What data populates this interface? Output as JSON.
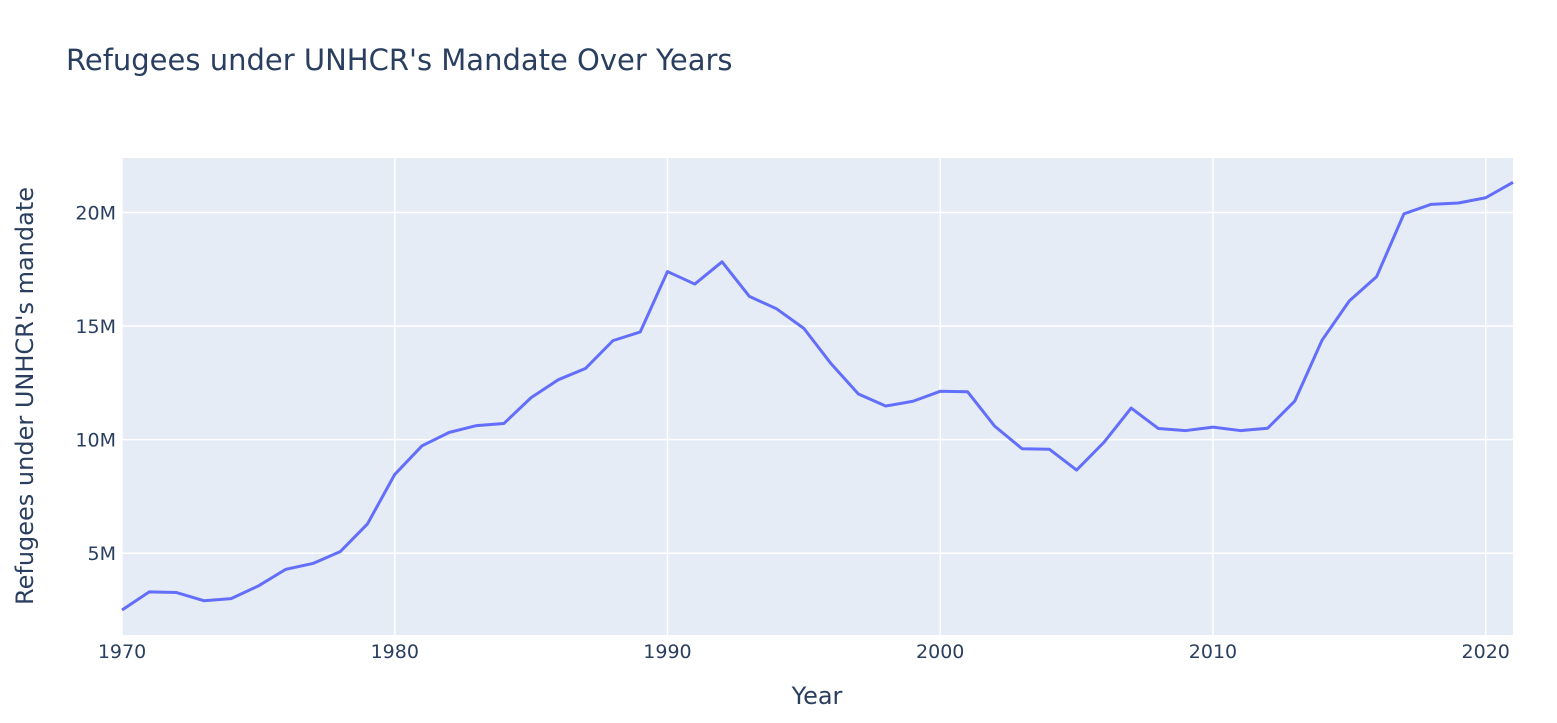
{
  "chart_data": {
    "type": "line",
    "title": "Refugees under UNHCR's Mandate Over Years",
    "xlabel": "Year",
    "ylabel": "Refugees under UNHCR's mandate",
    "xlim": [
      1970,
      2021
    ],
    "ylim": [
      1400000,
      22400000
    ],
    "x_ticks": [
      1970,
      1980,
      1990,
      2000,
      2010,
      2020
    ],
    "y_ticks": [
      5000000,
      10000000,
      15000000,
      20000000
    ],
    "y_tick_labels": [
      "5M",
      "10M",
      "15M",
      "20M"
    ],
    "grid": true,
    "legend": "none",
    "colors": {
      "line": "#636efa",
      "plot_bg": "#e5ecf6",
      "grid": "#ffffff",
      "text": "#2a3f5f"
    },
    "series": [
      {
        "x": [
          1970,
          1971,
          1972,
          1973,
          1974,
          1975,
          1976,
          1977,
          1978,
          1979,
          1980,
          1981,
          1982,
          1983,
          1984,
          1985,
          1986,
          1987,
          1988,
          1989,
          1990,
          1991,
          1992,
          1993,
          1994,
          1995,
          1996,
          1997,
          1998,
          1999,
          2000,
          2001,
          2002,
          2003,
          2004,
          2005,
          2006,
          2007,
          2008,
          2009,
          2010,
          2011,
          2012,
          2013,
          2014,
          2015,
          2016,
          2017,
          2018,
          2019,
          2020,
          2021
        ],
        "values": [
          2500000,
          3300000,
          3270000,
          2910000,
          3000000,
          3560000,
          4290000,
          4550000,
          5070000,
          6290000,
          8470000,
          9730000,
          10320000,
          10620000,
          10710000,
          11850000,
          12640000,
          13140000,
          14360000,
          14740000,
          17400000,
          16850000,
          17830000,
          16310000,
          15760000,
          14900000,
          13340000,
          12010000,
          11480000,
          11690000,
          12130000,
          12110000,
          10590000,
          9600000,
          9580000,
          8660000,
          9880000,
          11390000,
          10490000,
          10400000,
          10550000,
          10400000,
          10500000,
          11700000,
          14380000,
          16110000,
          17180000,
          19940000,
          20360000,
          20420000,
          20650000,
          21330000
        ]
      }
    ]
  }
}
